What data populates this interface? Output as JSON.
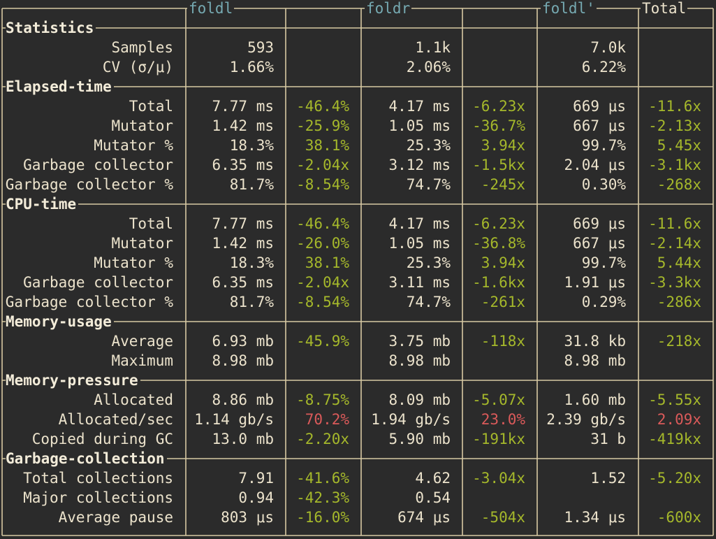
{
  "columns": [
    "foldl",
    "foldr",
    "foldl'",
    "Total"
  ],
  "sections": [
    {
      "title": "Statistics",
      "rows": [
        {
          "label": "Samples",
          "cells": [
            "593",
            "",
            "1.1k",
            "",
            "7.0k",
            ""
          ]
        },
        {
          "label": "CV (σ/μ)",
          "cells": [
            "1.66%",
            "",
            "2.06%",
            "",
            "6.22%",
            ""
          ]
        }
      ]
    },
    {
      "title": "Elapsed-time",
      "rows": [
        {
          "label": "Total",
          "cells": [
            "7.77 ms",
            "-46.4%",
            "4.17 ms",
            "-6.23x",
            "669 μs",
            "-11.6x"
          ]
        },
        {
          "label": "Mutator",
          "cells": [
            "1.42 ms",
            "-25.9%",
            "1.05 ms",
            "-36.7%",
            "667 μs",
            "-2.13x"
          ]
        },
        {
          "label": "Mutator %",
          "cells": [
            "18.3%",
            "38.1%",
            "25.3%",
            "3.94x",
            "99.7%",
            "5.45x"
          ]
        },
        {
          "label": "Garbage collector",
          "cells": [
            "6.35 ms",
            "-2.04x",
            "3.12 ms",
            "-1.5kx",
            "2.04 μs",
            "-3.1kx"
          ]
        },
        {
          "label": "Garbage collector %",
          "cells": [
            "81.7%",
            "-8.54%",
            "74.7%",
            "-245x",
            "0.30%",
            "-268x"
          ]
        }
      ]
    },
    {
      "title": "CPU-time",
      "rows": [
        {
          "label": "Total",
          "cells": [
            "7.77 ms",
            "-46.4%",
            "4.17 ms",
            "-6.23x",
            "669 μs",
            "-11.6x"
          ]
        },
        {
          "label": "Mutator",
          "cells": [
            "1.42 ms",
            "-26.0%",
            "1.05 ms",
            "-36.8%",
            "667 μs",
            "-2.14x"
          ]
        },
        {
          "label": "Mutator %",
          "cells": [
            "18.3%",
            "38.1%",
            "25.3%",
            "3.94x",
            "99.7%",
            "5.44x"
          ]
        },
        {
          "label": "Garbage collector",
          "cells": [
            "6.35 ms",
            "-2.04x",
            "3.11 ms",
            "-1.6kx",
            "1.91 μs",
            "-3.3kx"
          ]
        },
        {
          "label": "Garbage collector %",
          "cells": [
            "81.7%",
            "-8.54%",
            "74.7%",
            "-261x",
            "0.29%",
            "-286x"
          ]
        }
      ]
    },
    {
      "title": "Memory-usage",
      "rows": [
        {
          "label": "Average",
          "cells": [
            "6.93 mb",
            "-45.9%",
            "3.75 mb",
            "-118x",
            "31.8 kb",
            "-218x"
          ]
        },
        {
          "label": "Maximum",
          "cells": [
            "8.98 mb",
            "",
            "8.98 mb",
            "",
            "8.98 mb",
            ""
          ]
        }
      ]
    },
    {
      "title": "Memory-pressure",
      "rows": [
        {
          "label": "Allocated",
          "cells": [
            "8.86 mb",
            "-8.75%",
            "8.09 mb",
            "-5.07x",
            "1.60 mb",
            "-5.55x"
          ]
        },
        {
          "label": "Allocated/sec",
          "cells": [
            "1.14 gb/s",
            "70.2%",
            "1.94 gb/s",
            "23.0%",
            "2.39 gb/s",
            "2.09x"
          ]
        },
        {
          "label": "Copied during GC",
          "cells": [
            "13.0 mb",
            "-2.20x",
            "5.90 mb",
            "-191kx",
            "31 b",
            "-419kx"
          ]
        }
      ]
    },
    {
      "title": "Garbage-collection",
      "rows": [
        {
          "label": "Total collections",
          "cells": [
            "7.91",
            "-41.6%",
            "4.62",
            "-3.04x",
            "1.52",
            "-5.20x"
          ]
        },
        {
          "label": "Major collections",
          "cells": [
            "0.94",
            "-42.3%",
            "0.54",
            "",
            "",
            ""
          ]
        },
        {
          "label": "Average pause",
          "cells": [
            "803 μs",
            "-16.0%",
            "674 μs",
            "-504x",
            "1.34 μs",
            "-600x"
          ]
        }
      ]
    }
  ],
  "colors": {
    "background": "#2b2b2b",
    "border": "#d8c9a3",
    "text": "#ece3cc",
    "header": "#76aab2",
    "improvement": "#a5b82b",
    "regression": "#db5a5a"
  }
}
